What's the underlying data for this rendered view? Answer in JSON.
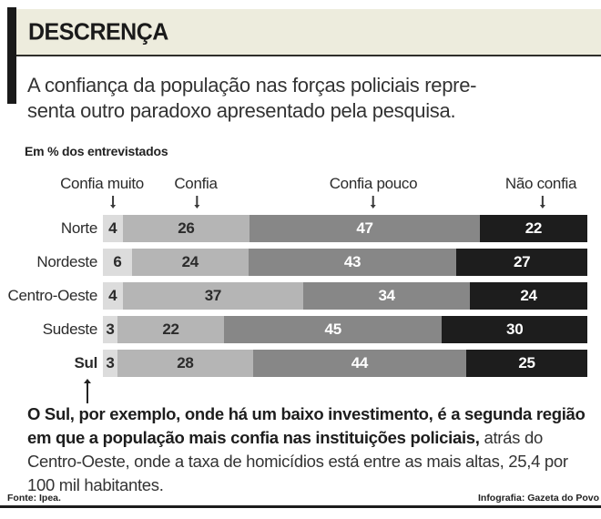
{
  "header": {
    "title": "DESCRENÇA"
  },
  "subtitle": {
    "line1": "A confiança da população nas forças policiais repre-",
    "line2": "senta outro paradoxo apresentado pela pesquisa."
  },
  "unit_label": "Em % dos entrevistados",
  "chart_data": {
    "type": "bar",
    "orientation": "horizontal",
    "stacked": true,
    "unit": "% dos entrevistados",
    "categories": [
      "Norte",
      "Nordeste",
      "Centro-Oeste",
      "Sudeste",
      "Sul"
    ],
    "series": [
      {
        "name": "Confia muito",
        "color": "#dcdcdc",
        "value_color": "#2b2b2b",
        "values": [
          4,
          6,
          4,
          3,
          3
        ]
      },
      {
        "name": "Confia",
        "color": "#b5b5b5",
        "value_color": "#2b2b2b",
        "values": [
          26,
          24,
          37,
          22,
          28
        ]
      },
      {
        "name": "Confia pouco",
        "color": "#878787",
        "value_color": "#ffffff",
        "values": [
          47,
          43,
          34,
          45,
          44
        ]
      },
      {
        "name": "Não confia",
        "color": "#1d1d1d",
        "value_color": "#ffffff",
        "values": [
          22,
          27,
          24,
          30,
          25
        ]
      }
    ],
    "legend_position": "top",
    "grid": false,
    "highlighted_category": "Sul",
    "xlim": [
      0,
      100
    ]
  },
  "note": {
    "bold": "O Sul, por exemplo, onde há um baixo investimento, é a segunda região em que a população mais confia nas instituições policiais,",
    "regular": " atrás do Centro-Oeste, onde a taxa de homicídios está entre as mais altas, 25,4 por 100 mil habitantes."
  },
  "footer": {
    "source": "Fonte: Ipea.",
    "credit": "Infografia: Gazeta do Povo"
  },
  "colors": {
    "header_bg": "#edecdd",
    "accent_black": "#1a1a1a",
    "rule": "#1c1c1c",
    "text_dark": "#2b2b2b"
  }
}
